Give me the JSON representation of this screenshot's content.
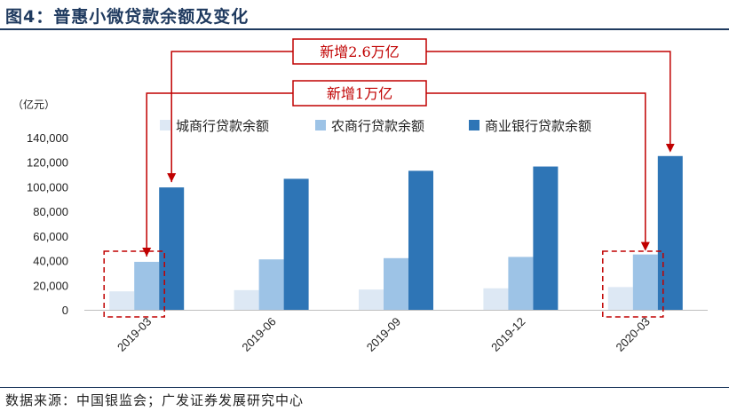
{
  "title": "图4：普惠小微贷款余额及变化",
  "source": "数据来源：中国银监会；广发证券发展研究中心",
  "chart_data": {
    "type": "bar",
    "unit": "（亿元）",
    "categories": [
      "2019-03",
      "2019-06",
      "2019-09",
      "2019-12",
      "2020-03"
    ],
    "series": [
      {
        "name": "城商行贷款余额",
        "color": "#dde8f4",
        "values": [
          15000,
          16000,
          16500,
          17500,
          18500
        ]
      },
      {
        "name": "农商行贷款余额",
        "color": "#9dc3e6",
        "values": [
          39000,
          41000,
          42000,
          43000,
          45000
        ]
      },
      {
        "name": "商业银行贷款余额",
        "color": "#2e75b6",
        "values": [
          99500,
          106500,
          113000,
          116500,
          125000
        ]
      }
    ],
    "ylim": [
      0,
      140000
    ],
    "yticks": [
      "0",
      "20,000",
      "40,000",
      "60,000",
      "80,000",
      "100,000",
      "120,000",
      "140,000"
    ],
    "legend_position": "top",
    "grid": false,
    "annotations": [
      {
        "text": "新增2.6万亿",
        "from_category": "2019-03",
        "to_category": "2020-03",
        "series": "商业银行贷款余额"
      },
      {
        "text": "新增1万亿",
        "from_category": "2019-03",
        "to_category": "2020-03",
        "series": "农商行贷款余额"
      }
    ],
    "accent_color": "#c00000"
  }
}
